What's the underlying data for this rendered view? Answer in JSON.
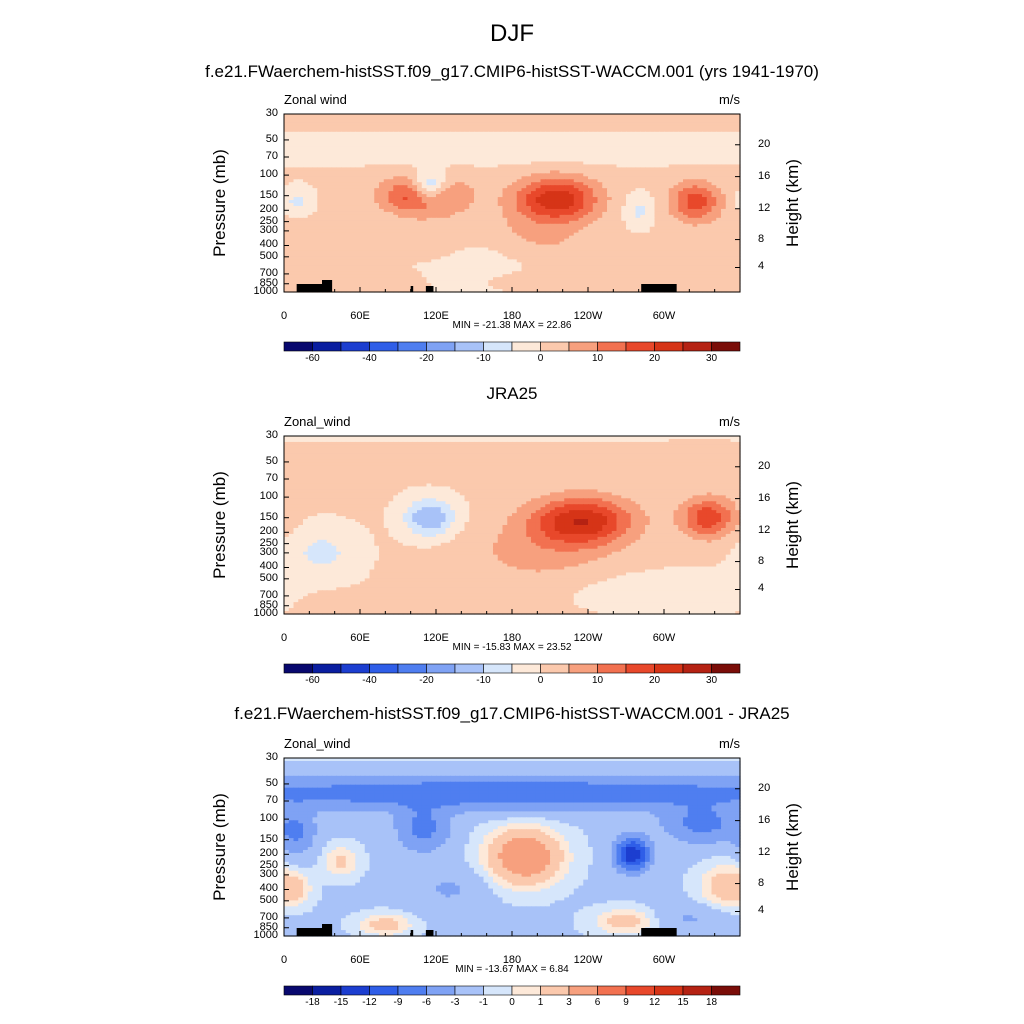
{
  "figure_title": "DJF",
  "chart_data": [
    {
      "type": "heatmap",
      "title": "f.e21.FWaerchem-histSST.f09_g17.CMIP6-histSST-WACCM.001 (yrs 1941-1970)",
      "left_label": "Zonal wind",
      "units": "m/s",
      "ylabel": "Pressure (mb)",
      "ylabel_right": "Height (km)",
      "pressure_ticks": [
        "30",
        "50",
        "70",
        "100",
        "150",
        "200",
        "250",
        "300",
        "400",
        "500",
        "700",
        "850",
        "1000"
      ],
      "height_ticks": [
        "20",
        "16",
        "12",
        "8",
        "4"
      ],
      "x_ticks": [
        "0",
        "60E",
        "120E",
        "180",
        "120W",
        "60W"
      ],
      "min_max": "MIN = -21.38  MAX =  22.86",
      "min": -21.38,
      "max": 22.86,
      "colorbar_labels": [
        "-60",
        "-40",
        "-20",
        "-10",
        "0",
        "10",
        "20",
        "30"
      ],
      "colorbar_colors": [
        "#08086e",
        "#0a1ea0",
        "#1c3ed0",
        "#2f5ee8",
        "#4f7ef0",
        "#7fa2f4",
        "#a8c2f8",
        "#d6e6fb",
        "#fde9d9",
        "#fbc9ad",
        "#f7a07e",
        "#f27150",
        "#e8482b",
        "#d63417",
        "#b52213",
        "#7a0d08"
      ],
      "blobs": [
        {
          "lon": 110,
          "p": 150,
          "amp": 21,
          "sx": 22,
          "sp": 0.26
        },
        {
          "lon": 215,
          "p": 160,
          "amp": 22.8,
          "sx": 23,
          "sp": 0.3
        },
        {
          "lon": 325,
          "p": 170,
          "amp": 17,
          "sx": 14,
          "sp": 0.28
        },
        {
          "lon": 200,
          "p": 350,
          "amp": 6,
          "sx": 30,
          "sp": 0.4
        },
        {
          "lon": 40,
          "p": 900,
          "amp": 3,
          "sx": 20,
          "sp": 0.1
        },
        {
          "lon": 90,
          "p": 820,
          "amp": 4,
          "sx": 12,
          "sp": 0.12
        },
        {
          "lon": 190,
          "p": 800,
          "amp": 3,
          "sx": 25,
          "sp": 0.12
        },
        {
          "lon": 120,
          "p": 380,
          "amp": 3,
          "sx": 20,
          "sp": 0.3
        },
        {
          "lon": 10,
          "p": 300,
          "amp": 2,
          "sx": 12,
          "sp": 0.25
        }
      ],
      "neg_blobs": [
        {
          "lon": 115,
          "p": 130,
          "amp": 21.4,
          "sx": 10,
          "sp": 0.22
        },
        {
          "lon": 10,
          "p": 170,
          "amp": 7,
          "sx": 8,
          "sp": 0.2
        },
        {
          "lon": 280,
          "p": 200,
          "amp": 7,
          "sx": 8,
          "sp": 0.22
        },
        {
          "lon": 180,
          "p": 60,
          "amp": 5,
          "sx": 200,
          "sp": 0.18
        },
        {
          "lon": 160,
          "p": 550,
          "amp": 4,
          "sx": 40,
          "sp": 0.4
        }
      ],
      "base": 0.6,
      "topography": true
    },
    {
      "type": "heatmap",
      "title": "JRA25",
      "left_label": "Zonal_wind",
      "units": "m/s",
      "ylabel": "Pressure (mb)",
      "ylabel_right": "Height (km)",
      "pressure_ticks": [
        "30",
        "50",
        "70",
        "100",
        "150",
        "200",
        "250",
        "300",
        "400",
        "500",
        "700",
        "850",
        "1000"
      ],
      "height_ticks": [
        "20",
        "16",
        "12",
        "8",
        "4"
      ],
      "x_ticks": [
        "0",
        "60E",
        "120E",
        "180",
        "120W",
        "60W"
      ],
      "min_max": "MIN = -15.83  MAX =  23.52",
      "min": -15.83,
      "max": 23.52,
      "colorbar_labels": [
        "-60",
        "-40",
        "-20",
        "-10",
        "0",
        "10",
        "20",
        "30"
      ],
      "colorbar_colors": [
        "#08086e",
        "#0a1ea0",
        "#1c3ed0",
        "#2f5ee8",
        "#4f7ef0",
        "#7fa2f4",
        "#a8c2f8",
        "#d6e6fb",
        "#fde9d9",
        "#fbc9ad",
        "#f7a07e",
        "#f27150",
        "#e8482b",
        "#d63417",
        "#b52213",
        "#7a0d08"
      ],
      "blobs": [
        {
          "lon": 235,
          "p": 160,
          "amp": 23.5,
          "sx": 28,
          "sp": 0.33
        },
        {
          "lon": 335,
          "p": 150,
          "amp": 18,
          "sx": 15,
          "sp": 0.28
        },
        {
          "lon": 200,
          "p": 300,
          "amp": 6,
          "sx": 40,
          "sp": 0.45
        },
        {
          "lon": 50,
          "p": 750,
          "amp": 2.5,
          "sx": 25,
          "sp": 0.12
        },
        {
          "lon": 170,
          "p": 50,
          "amp": 1.5,
          "sx": 200,
          "sp": 0.2
        }
      ],
      "neg_blobs": [
        {
          "lon": 115,
          "p": 150,
          "amp": 15.8,
          "sx": 14,
          "sp": 0.26
        },
        {
          "lon": 30,
          "p": 300,
          "amp": 7,
          "sx": 20,
          "sp": 0.35
        },
        {
          "lon": 300,
          "p": 650,
          "amp": 5,
          "sx": 45,
          "sp": 0.25
        },
        {
          "lon": 150,
          "p": 30,
          "amp": 3,
          "sx": 120,
          "sp": 0.08
        }
      ],
      "base": 0.6,
      "topography": false
    },
    {
      "type": "heatmap",
      "title": "f.e21.FWaerchem-histSST.f09_g17.CMIP6-histSST-WACCM.001 - JRA25",
      "left_label": "Zonal_wind",
      "units": "m/s",
      "ylabel": "Pressure (mb)",
      "ylabel_right": "Height (km)",
      "pressure_ticks": [
        "30",
        "50",
        "70",
        "100",
        "150",
        "200",
        "250",
        "300",
        "400",
        "500",
        "700",
        "850",
        "1000"
      ],
      "height_ticks": [
        "20",
        "16",
        "12",
        "8",
        "4"
      ],
      "x_ticks": [
        "0",
        "60E",
        "120E",
        "180",
        "120W",
        "60W"
      ],
      "min_max": "MIN = -13.67  MAX =   6.84",
      "min": -13.67,
      "max": 6.84,
      "colorbar_labels": [
        "-18",
        "-15",
        "-12",
        "-9",
        "-6",
        "-3",
        "-1",
        "0",
        "1",
        "3",
        "6",
        "9",
        "12",
        "15",
        "18"
      ],
      "colorbar_colors": [
        "#08086e",
        "#0a1ea0",
        "#1c3ed0",
        "#2f5ee8",
        "#4f7ef0",
        "#7fa2f4",
        "#a8c2f8",
        "#d6e6fb",
        "#fde9d9",
        "#fbc9ad",
        "#f7a07e",
        "#f27150",
        "#e8482b",
        "#d63417",
        "#b52213",
        "#7a0d08"
      ],
      "blobs": [
        {
          "lon": 190,
          "p": 210,
          "amp": 6.8,
          "sx": 20,
          "sp": 0.38
        },
        {
          "lon": 45,
          "p": 230,
          "amp": 2.5,
          "sx": 10,
          "sp": 0.22
        },
        {
          "lon": 350,
          "p": 380,
          "amp": 3.5,
          "sx": 15,
          "sp": 0.3
        },
        {
          "lon": 80,
          "p": 800,
          "amp": 3,
          "sx": 15,
          "sp": 0.15
        },
        {
          "lon": 270,
          "p": 750,
          "amp": 3,
          "sx": 18,
          "sp": 0.18
        },
        {
          "lon": 10,
          "p": 400,
          "amp": 2,
          "sx": 8,
          "sp": 0.2
        },
        {
          "lon": 180,
          "p": 30,
          "amp": 1,
          "sx": 200,
          "sp": 0.04
        }
      ],
      "neg_blobs": [
        {
          "lon": 180,
          "p": 60,
          "amp": 7.5,
          "sx": 200,
          "sp": 0.22
        },
        {
          "lon": 275,
          "p": 200,
          "amp": 13.6,
          "sx": 9,
          "sp": 0.22
        },
        {
          "lon": 110,
          "p": 120,
          "amp": 6,
          "sx": 14,
          "sp": 0.3
        },
        {
          "lon": 10,
          "p": 130,
          "amp": 5,
          "sx": 10,
          "sp": 0.3
        },
        {
          "lon": 330,
          "p": 110,
          "amp": 6,
          "sx": 20,
          "sp": 0.25
        },
        {
          "lon": 130,
          "p": 400,
          "amp": 2,
          "sx": 20,
          "sp": 0.3
        },
        {
          "lon": 320,
          "p": 700,
          "amp": 2,
          "sx": 20,
          "sp": 0.2
        }
      ],
      "base": -1.2,
      "topography": true
    }
  ]
}
